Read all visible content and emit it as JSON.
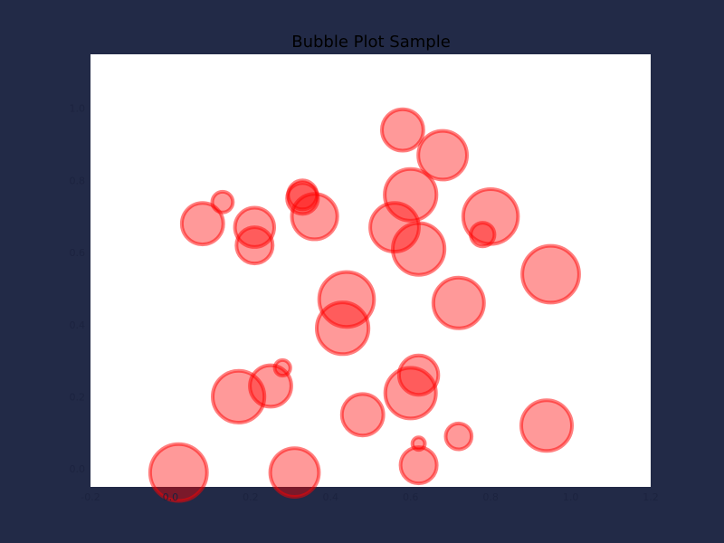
{
  "chart_data": {
    "type": "scatter",
    "title": "Bubble Plot Sample",
    "xlabel": "",
    "ylabel": "",
    "xlim": [
      -0.2,
      1.2
    ],
    "ylim": [
      -0.05,
      1.15
    ],
    "xticks": [
      "-0.2",
      "0.0",
      "0.2",
      "0.4",
      "0.6",
      "0.8",
      "1.0",
      "1.2"
    ],
    "yticks": [
      "0.0",
      "0.2",
      "0.4",
      "0.6",
      "0.8",
      "1.0"
    ],
    "grid": false,
    "marker_color": "#ff0000",
    "marker_opacity": 0.4,
    "points": [
      {
        "x": 0.02,
        "y": -0.01,
        "s": 0.55
      },
      {
        "x": 0.08,
        "y": 0.68,
        "s": 0.4
      },
      {
        "x": 0.13,
        "y": 0.74,
        "s": 0.2
      },
      {
        "x": 0.17,
        "y": 0.2,
        "s": 0.5
      },
      {
        "x": 0.21,
        "y": 0.67,
        "s": 0.38
      },
      {
        "x": 0.21,
        "y": 0.62,
        "s": 0.35
      },
      {
        "x": 0.25,
        "y": 0.23,
        "s": 0.4
      },
      {
        "x": 0.28,
        "y": 0.28,
        "s": 0.15
      },
      {
        "x": 0.31,
        "y": -0.01,
        "s": 0.47
      },
      {
        "x": 0.33,
        "y": 0.76,
        "s": 0.28
      },
      {
        "x": 0.33,
        "y": 0.75,
        "s": 0.3
      },
      {
        "x": 0.36,
        "y": 0.7,
        "s": 0.44
      },
      {
        "x": 0.43,
        "y": 0.39,
        "s": 0.5
      },
      {
        "x": 0.44,
        "y": 0.47,
        "s": 0.53
      },
      {
        "x": 0.48,
        "y": 0.15,
        "s": 0.4
      },
      {
        "x": 0.56,
        "y": 0.67,
        "s": 0.47
      },
      {
        "x": 0.58,
        "y": 0.94,
        "s": 0.4
      },
      {
        "x": 0.6,
        "y": 0.76,
        "s": 0.5
      },
      {
        "x": 0.6,
        "y": 0.21,
        "s": 0.49
      },
      {
        "x": 0.62,
        "y": 0.26,
        "s": 0.38
      },
      {
        "x": 0.62,
        "y": 0.61,
        "s": 0.5
      },
      {
        "x": 0.62,
        "y": 0.07,
        "s": 0.12
      },
      {
        "x": 0.62,
        "y": 0.01,
        "s": 0.35
      },
      {
        "x": 0.68,
        "y": 0.87,
        "s": 0.47
      },
      {
        "x": 0.72,
        "y": 0.46,
        "s": 0.49
      },
      {
        "x": 0.72,
        "y": 0.09,
        "s": 0.25
      },
      {
        "x": 0.78,
        "y": 0.65,
        "s": 0.23
      },
      {
        "x": 0.8,
        "y": 0.7,
        "s": 0.53
      },
      {
        "x": 0.95,
        "y": 0.54,
        "s": 0.55
      },
      {
        "x": 0.94,
        "y": 0.12,
        "s": 0.49
      }
    ]
  }
}
